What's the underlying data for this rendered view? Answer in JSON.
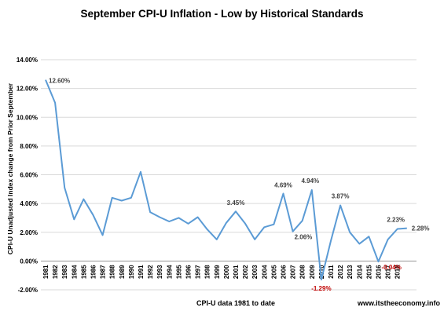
{
  "chart_data": {
    "type": "line",
    "title": "September CPI-U Inflation - Low by Historical Standards",
    "xlabel": "CPI-U data 1981 to date",
    "ylabel": "CPI-U Unadjusted Index change from Prior September",
    "source_note": "www.itstheeconomy.info",
    "ylim": [
      -2.0,
      14.0
    ],
    "yticks": [
      -2,
      0,
      2,
      4,
      6,
      8,
      10,
      12,
      14
    ],
    "ytick_labels": [
      "-2.00%",
      "0.00%",
      "2.00%",
      "4.00%",
      "6.00%",
      "8.00%",
      "10.00%",
      "12.00%",
      "14.00%"
    ],
    "grid": true,
    "legend": "none",
    "line_color": "#5b9bd5",
    "x": [
      1981,
      1982,
      1983,
      1984,
      1985,
      1986,
      1987,
      1988,
      1989,
      1990,
      1991,
      1992,
      1993,
      1994,
      1995,
      1996,
      1997,
      1998,
      1999,
      2000,
      2001,
      2002,
      2003,
      2004,
      2005,
      2006,
      2007,
      2008,
      2009,
      2010,
      2011,
      2012,
      2013,
      2014,
      2015,
      2016,
      2017,
      2018,
      2019
    ],
    "x_tick_labels": [
      "1981",
      "1982",
      "1983",
      "1984",
      "1985",
      "1986",
      "1987",
      "1988",
      "1989",
      "1990",
      "1991",
      "1992",
      "1993",
      "1994",
      "1995",
      "1996",
      "1997",
      "1998",
      "1999",
      "2000",
      "2001",
      "2002",
      "2003",
      "2004",
      "2005",
      "2006",
      "2007",
      "2008",
      "2009",
      "2010",
      "2011",
      "2012",
      "2013",
      "2014",
      "2015",
      "2016",
      "2017",
      "2018"
    ],
    "series": [
      {
        "values": [
          12.6,
          11.0,
          5.1,
          2.9,
          4.3,
          3.2,
          1.8,
          4.4,
          4.2,
          4.4,
          6.2,
          3.4,
          3.05,
          2.75,
          3.0,
          2.6,
          3.05,
          2.2,
          1.5,
          2.65,
          3.45,
          2.6,
          1.5,
          2.35,
          2.55,
          4.69,
          2.06,
          2.8,
          4.94,
          -1.29,
          1.4,
          3.87,
          2.0,
          1.2,
          1.7,
          -0.04,
          1.5,
          2.23,
          2.28
        ]
      }
    ],
    "annotations": [
      {
        "year": 1981,
        "value": 12.6,
        "text": "12.60%",
        "color": "#404040"
      },
      {
        "year": 2001,
        "value": 3.45,
        "text": "3.45%",
        "color": "#404040"
      },
      {
        "year": 2006,
        "value": 4.69,
        "text": "4.69%",
        "color": "#404040"
      },
      {
        "year": 2007,
        "value": 2.06,
        "text": "2.06%",
        "color": "#404040"
      },
      {
        "year": 2009,
        "value": 4.94,
        "text": "4.94%",
        "color": "#404040"
      },
      {
        "year": 2010,
        "value": -1.29,
        "text": "-1.29%",
        "color": "#c00000"
      },
      {
        "year": 2012,
        "value": 3.87,
        "text": "3.87%",
        "color": "#404040"
      },
      {
        "year": 2016,
        "value": -0.04,
        "text": "-0.04%",
        "color": "#c00000"
      },
      {
        "year": 2018,
        "value": 2.23,
        "text": "2.23%",
        "color": "#404040"
      },
      {
        "year": 2019,
        "value": 2.28,
        "text": "2.28%",
        "color": "#404040"
      }
    ]
  }
}
